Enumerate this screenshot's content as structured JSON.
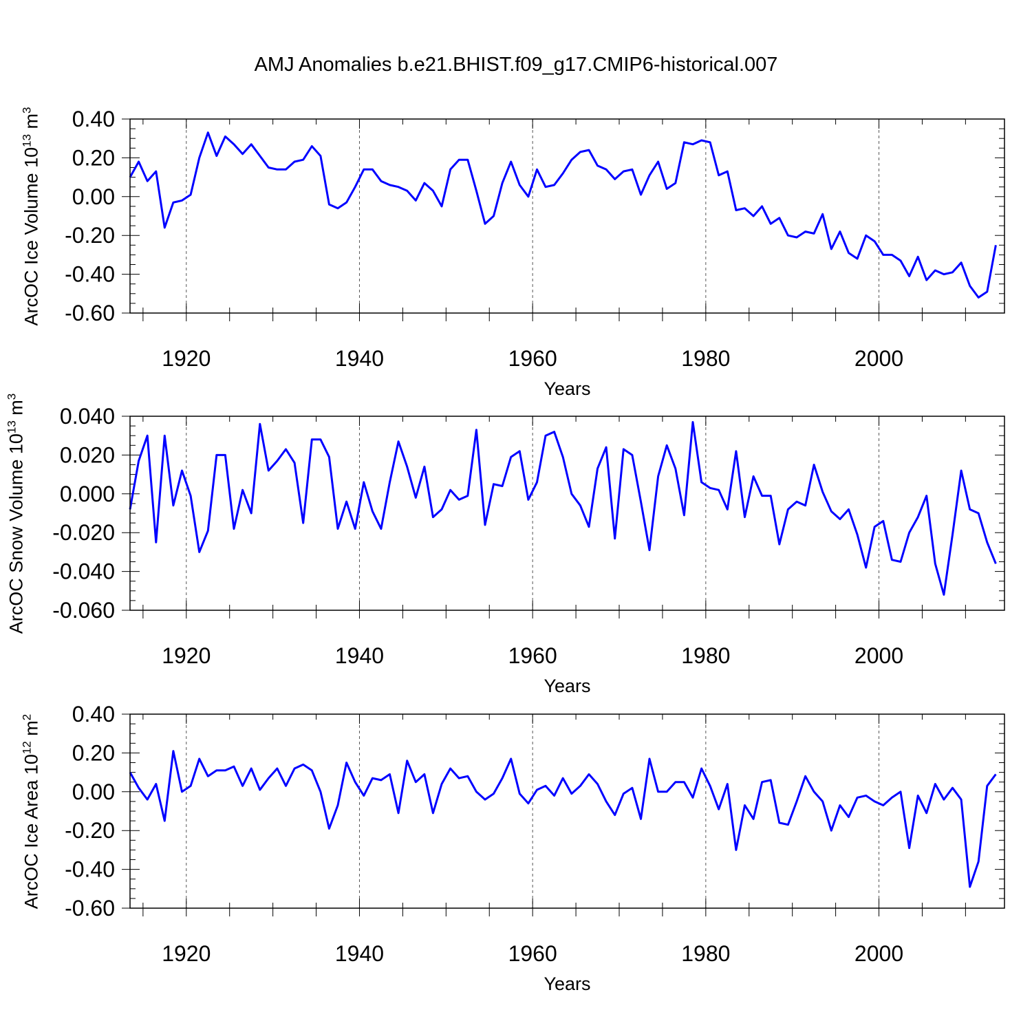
{
  "title": "AMJ Anomalies b.e21.BHIST.f09_g17.CMIP6-historical.007",
  "colors": {
    "line": "#0000ff",
    "axis": "#000000",
    "grid": "#555555"
  },
  "chart_data": [
    {
      "type": "line",
      "name": "ice-volume",
      "ylabel": {
        "main": "ArcOC Ice Volume 10",
        "exp": "13",
        "unit": " m",
        "unit_exp": "3"
      },
      "xlabel": "Years",
      "xlim": [
        1913.5,
        2014.5
      ],
      "ylim": [
        -0.6,
        0.4
      ],
      "yticks": [
        0.4,
        0.2,
        0.0,
        -0.2,
        -0.4,
        -0.6
      ],
      "ytick_labels": [
        "0.40",
        "0.20",
        "0.00",
        "-0.20",
        "-0.40",
        "-0.60"
      ],
      "xticks": [
        1920,
        1940,
        1960,
        1980,
        2000
      ],
      "xtick_labels": [
        "1920",
        "1940",
        "1960",
        "1980",
        "2000"
      ],
      "x_start": 1913.5,
      "values": [
        0.1,
        0.18,
        0.08,
        0.13,
        -0.16,
        -0.03,
        -0.02,
        0.01,
        0.2,
        0.33,
        0.21,
        0.31,
        0.27,
        0.22,
        0.27,
        0.21,
        0.15,
        0.14,
        0.14,
        0.18,
        0.19,
        0.26,
        0.21,
        -0.04,
        -0.06,
        -0.03,
        0.05,
        0.14,
        0.14,
        0.08,
        0.06,
        0.05,
        0.03,
        -0.02,
        0.07,
        0.03,
        -0.05,
        0.14,
        0.19,
        0.19,
        0.03,
        -0.14,
        -0.1,
        0.07,
        0.18,
        0.06,
        0.0,
        0.14,
        0.05,
        0.06,
        0.12,
        0.19,
        0.23,
        0.24,
        0.16,
        0.14,
        0.09,
        0.13,
        0.14,
        0.01,
        0.11,
        0.18,
        0.04,
        0.07,
        0.28,
        0.27,
        0.29,
        0.28,
        0.11,
        0.13,
        -0.07,
        -0.06,
        -0.1,
        -0.05,
        -0.14,
        -0.11,
        -0.2,
        -0.21,
        -0.18,
        -0.19,
        -0.09,
        -0.27,
        -0.18,
        -0.29,
        -0.32,
        -0.2,
        -0.23,
        -0.3,
        -0.3,
        -0.33,
        -0.41,
        -0.31,
        -0.43,
        -0.38,
        -0.4,
        -0.39,
        -0.34,
        -0.46,
        -0.52,
        -0.49,
        -0.25
      ]
    },
    {
      "type": "line",
      "name": "snow-volume",
      "ylabel": {
        "main": "ArcOC Snow Volume 10",
        "exp": "13",
        "unit": " m",
        "unit_exp": "3"
      },
      "xlabel": "Years",
      "xlim": [
        1913.5,
        2014.5
      ],
      "ylim": [
        -0.06,
        0.04
      ],
      "yticks": [
        0.04,
        0.02,
        0.0,
        -0.02,
        -0.04,
        -0.06
      ],
      "ytick_labels": [
        "0.040",
        "0.020",
        "0.000",
        "-0.020",
        "-0.040",
        "-0.060"
      ],
      "xticks": [
        1920,
        1940,
        1960,
        1980,
        2000
      ],
      "xtick_labels": [
        "1920",
        "1940",
        "1960",
        "1980",
        "2000"
      ],
      "x_start": 1913.5,
      "values": [
        -0.008,
        0.017,
        0.03,
        -0.025,
        0.03,
        -0.006,
        0.012,
        -0.001,
        -0.03,
        -0.019,
        0.02,
        0.02,
        -0.018,
        0.002,
        -0.01,
        0.036,
        0.012,
        0.017,
        0.023,
        0.016,
        -0.015,
        0.028,
        0.028,
        0.019,
        -0.018,
        -0.004,
        -0.018,
        0.006,
        -0.009,
        -0.018,
        0.006,
        0.027,
        0.014,
        -0.002,
        0.014,
        -0.012,
        -0.008,
        0.002,
        -0.003,
        -0.001,
        0.033,
        -0.016,
        0.005,
        0.004,
        0.019,
        0.022,
        -0.003,
        0.006,
        0.03,
        0.032,
        0.019,
        0.0,
        -0.006,
        -0.017,
        0.013,
        0.024,
        -0.023,
        0.023,
        0.02,
        -0.004,
        -0.029,
        0.009,
        0.025,
        0.013,
        -0.011,
        0.037,
        0.006,
        0.003,
        0.002,
        -0.008,
        0.022,
        -0.012,
        0.009,
        -0.001,
        -0.001,
        -0.026,
        -0.008,
        -0.004,
        -0.006,
        0.015,
        0.001,
        -0.009,
        -0.013,
        -0.008,
        -0.021,
        -0.038,
        -0.017,
        -0.014,
        -0.034,
        -0.035,
        -0.02,
        -0.012,
        -0.001,
        -0.036,
        -0.052,
        -0.021,
        0.012,
        -0.008,
        -0.01,
        -0.025,
        -0.036
      ]
    },
    {
      "type": "line",
      "name": "ice-area",
      "ylabel": {
        "main": "ArcOC Ice Area 10",
        "exp": "12",
        "unit": " m",
        "unit_exp": "2"
      },
      "xlabel": "Years",
      "xlim": [
        1913.5,
        2014.5
      ],
      "ylim": [
        -0.6,
        0.4
      ],
      "yticks": [
        0.4,
        0.2,
        0.0,
        -0.2,
        -0.4,
        -0.6
      ],
      "ytick_labels": [
        "0.40",
        "0.20",
        "0.00",
        "-0.20",
        "-0.40",
        "-0.60"
      ],
      "xticks": [
        1920,
        1940,
        1960,
        1980,
        2000
      ],
      "xtick_labels": [
        "1920",
        "1940",
        "1960",
        "1980",
        "2000"
      ],
      "x_start": 1913.5,
      "values": [
        0.1,
        0.02,
        -0.04,
        0.04,
        -0.15,
        0.21,
        0.0,
        0.03,
        0.17,
        0.08,
        0.11,
        0.11,
        0.13,
        0.03,
        0.12,
        0.01,
        0.07,
        0.12,
        0.03,
        0.12,
        0.14,
        0.11,
        0.0,
        -0.19,
        -0.07,
        0.15,
        0.05,
        -0.02,
        0.07,
        0.06,
        0.09,
        -0.11,
        0.16,
        0.05,
        0.09,
        -0.11,
        0.04,
        0.12,
        0.07,
        0.08,
        0.0,
        -0.04,
        -0.01,
        0.07,
        0.17,
        -0.01,
        -0.06,
        0.01,
        0.03,
        -0.02,
        0.07,
        -0.01,
        0.03,
        0.09,
        0.04,
        -0.05,
        -0.12,
        -0.01,
        0.02,
        -0.14,
        0.17,
        0.0,
        0.0,
        0.05,
        0.05,
        -0.03,
        0.12,
        0.03,
        -0.09,
        0.04,
        -0.3,
        -0.07,
        -0.14,
        0.05,
        0.06,
        -0.16,
        -0.17,
        -0.05,
        0.08,
        0.0,
        -0.05,
        -0.2,
        -0.07,
        -0.13,
        -0.03,
        -0.02,
        -0.05,
        -0.07,
        -0.03,
        0.0,
        -0.29,
        -0.02,
        -0.11,
        0.04,
        -0.04,
        0.02,
        -0.04,
        -0.49,
        -0.36,
        0.03,
        0.09
      ]
    }
  ]
}
